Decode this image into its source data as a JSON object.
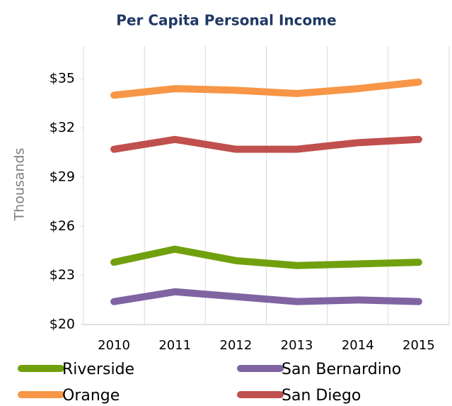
{
  "chart_data": {
    "type": "line",
    "title": "Per Capita Personal Income",
    "y_label": "Thousands",
    "categories": [
      "2010",
      "2011",
      "2012",
      "2013",
      "2014",
      "2015"
    ],
    "series": [
      {
        "name": "Riverside",
        "color": "#71a00f",
        "values": [
          23.8,
          24.6,
          23.9,
          23.6,
          23.7,
          23.8
        ]
      },
      {
        "name": "San Bernardino",
        "color": "#8064a2",
        "values": [
          21.4,
          22.0,
          21.7,
          21.4,
          21.5,
          21.4
        ]
      },
      {
        "name": "Orange",
        "color": "#f79646",
        "values": [
          34.0,
          34.4,
          34.3,
          34.1,
          34.4,
          34.8
        ]
      },
      {
        "name": "San Diego",
        "color": "#c0504d",
        "values": [
          30.7,
          31.3,
          30.7,
          30.7,
          31.1,
          31.3
        ]
      }
    ],
    "ylim": [
      20,
      37
    ],
    "yticks": [
      {
        "value": 20,
        "label": "$20"
      },
      {
        "value": 23,
        "label": "$23"
      },
      {
        "value": 26,
        "label": "$26"
      },
      {
        "value": 29,
        "label": "$29"
      },
      {
        "value": 32,
        "label": "$32"
      },
      {
        "value": 35,
        "label": "$35"
      }
    ],
    "grid": "x",
    "legend": "bottom"
  }
}
